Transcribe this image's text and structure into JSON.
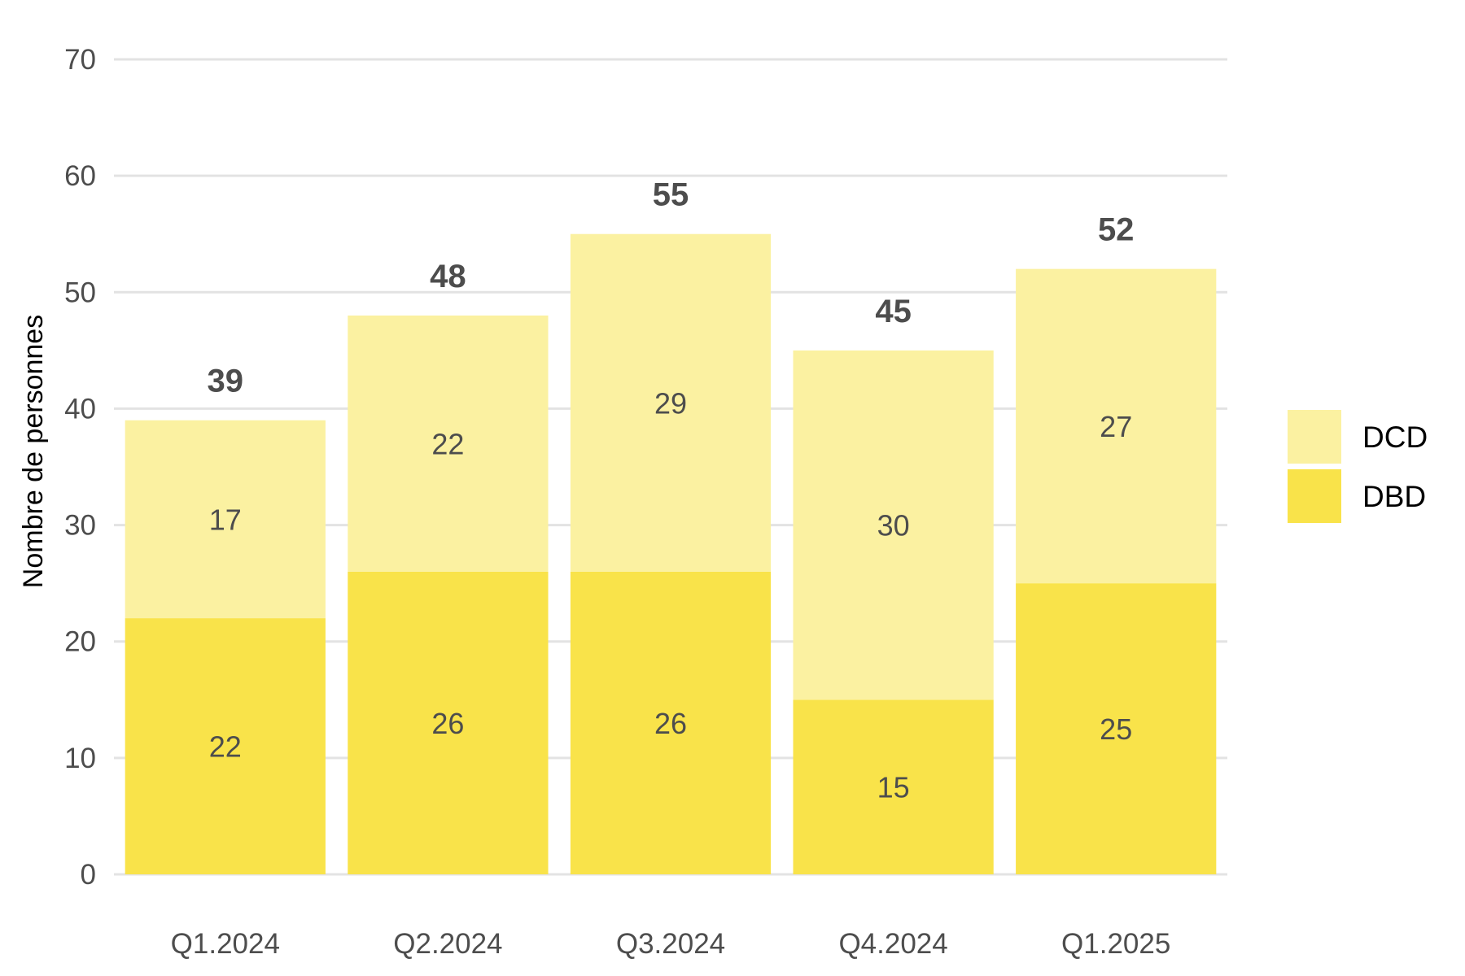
{
  "chart_data": {
    "type": "bar",
    "stacked": true,
    "title": "",
    "xlabel": "",
    "ylabel": "Nombre de personnes",
    "ylim": [
      0,
      70
    ],
    "yticks": [
      0,
      10,
      20,
      30,
      40,
      50,
      60,
      70
    ],
    "grid": true,
    "legend_position": "right",
    "categories": [
      "Q1.2024",
      "Q2.2024",
      "Q3.2024",
      "Q4.2024",
      "Q1.2025"
    ],
    "series": [
      {
        "name": "DBD",
        "values": [
          22,
          26,
          26,
          15,
          25
        ],
        "color": "#f9e34a"
      },
      {
        "name": "DCD",
        "values": [
          17,
          22,
          29,
          30,
          27
        ],
        "color": "#fbf1a1"
      }
    ],
    "totals": [
      39,
      48,
      55,
      45,
      52
    ],
    "legend_order": [
      "DCD",
      "DBD"
    ]
  }
}
